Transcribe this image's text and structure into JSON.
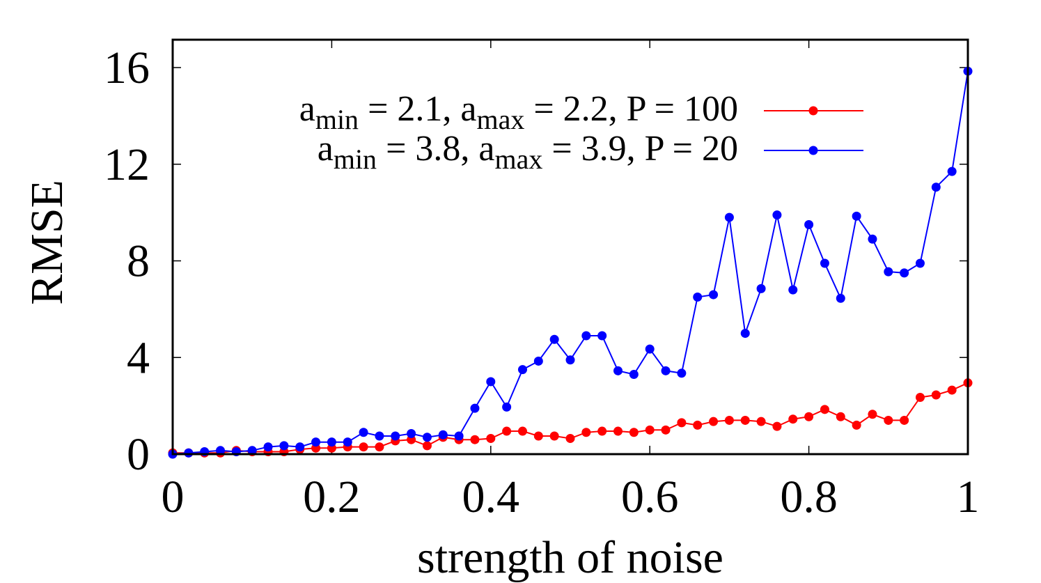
{
  "chart_data": {
    "type": "line",
    "title": "",
    "xlabel": "strength of noise",
    "ylabel": "RMSE",
    "xlim": [
      0,
      1
    ],
    "ylim": [
      0,
      16
    ],
    "xticks": [
      0,
      0.2,
      0.4,
      0.6,
      0.8,
      1
    ],
    "xtick_labels": [
      "0",
      "0.2",
      "0.4",
      "0.6",
      "0.8",
      "1"
    ],
    "yticks": [
      0,
      4,
      8,
      12,
      16
    ],
    "ytick_labels": [
      "0",
      "4",
      "8",
      "12",
      "16"
    ],
    "grid": false,
    "legend_position": "top-right",
    "x": [
      0,
      0.02,
      0.04,
      0.06,
      0.08,
      0.1,
      0.12,
      0.14,
      0.16,
      0.18,
      0.2,
      0.22,
      0.24,
      0.26,
      0.28,
      0.3,
      0.32,
      0.34,
      0.36,
      0.38,
      0.4,
      0.42,
      0.44,
      0.46,
      0.48,
      0.5,
      0.52,
      0.54,
      0.56,
      0.58,
      0.6,
      0.62,
      0.64,
      0.66,
      0.68,
      0.7,
      0.72,
      0.74,
      0.76,
      0.78,
      0.8,
      0.82,
      0.84,
      0.86,
      0.88,
      0.9,
      0.92,
      0.94,
      0.96,
      0.98,
      1
    ],
    "series": [
      {
        "name": "a_min = 2.1, a_max = 2.2, P = 100",
        "legend": [
          {
            "t": "a",
            "s": "base"
          },
          {
            "t": "min",
            "s": "sub"
          },
          {
            "t": " = 2.1, a",
            "s": "base"
          },
          {
            "t": "max",
            "s": "sub"
          },
          {
            "t": " = 2.2, P = 100",
            "s": "base"
          }
        ],
        "color": "#ff0000",
        "values": [
          0.05,
          0.05,
          0.05,
          0.05,
          0.15,
          0.1,
          0.1,
          0.1,
          0.2,
          0.25,
          0.25,
          0.3,
          0.3,
          0.3,
          0.55,
          0.6,
          0.35,
          0.7,
          0.6,
          0.6,
          0.65,
          0.95,
          0.95,
          0.75,
          0.75,
          0.65,
          0.9,
          0.95,
          0.95,
          0.9,
          1.0,
          1.0,
          1.3,
          1.2,
          1.35,
          1.4,
          1.4,
          1.35,
          1.15,
          1.45,
          1.55,
          1.85,
          1.55,
          1.2,
          1.65,
          1.4,
          1.4,
          2.35,
          2.45,
          2.65,
          2.95
        ]
      },
      {
        "name": "a_min = 3.8, a_max = 3.9, P = 20",
        "legend": [
          {
            "t": "a",
            "s": "base"
          },
          {
            "t": "min",
            "s": "sub"
          },
          {
            "t": " = 3.8, a",
            "s": "base"
          },
          {
            "t": "max",
            "s": "sub"
          },
          {
            "t": " = 3.9,   P = 20",
            "s": "base"
          }
        ],
        "color": "#0000ff",
        "values": [
          0.0,
          0.05,
          0.1,
          0.15,
          0.1,
          0.15,
          0.3,
          0.35,
          0.3,
          0.5,
          0.5,
          0.5,
          0.9,
          0.75,
          0.75,
          0.85,
          0.7,
          0.8,
          0.75,
          1.9,
          3.0,
          1.95,
          3.5,
          3.85,
          4.75,
          3.9,
          4.9,
          4.9,
          3.45,
          3.3,
          4.35,
          3.45,
          3.35,
          6.5,
          6.6,
          9.8,
          5.0,
          6.85,
          9.9,
          6.8,
          9.5,
          7.9,
          6.45,
          9.85,
          8.9,
          7.55,
          7.5,
          7.9,
          11.05,
          11.7,
          15.85
        ]
      }
    ]
  }
}
